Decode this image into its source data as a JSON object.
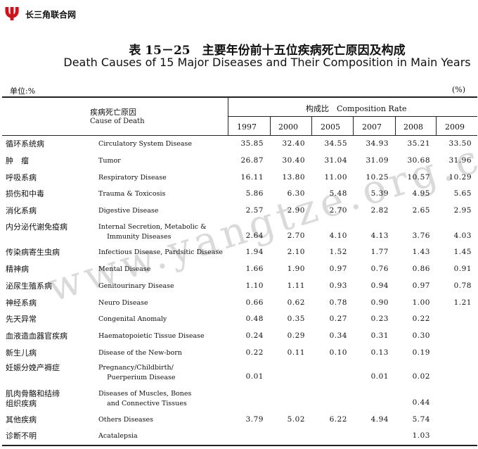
{
  "logo": {
    "text": "长三角联合网",
    "mark": "Ψ",
    "color": "#d0101a"
  },
  "title": {
    "cn": "表 15－25　主要年份前十五位疾病死亡原因及构成",
    "en": "Death Causes of 15 Major Diseases and Their Composition in Main Years"
  },
  "unit": {
    "left": "单位:%",
    "right": "(%)"
  },
  "header": {
    "cause_cn": "疾病死亡原因",
    "cause_en": "Cause of Death",
    "rate": "构成比　Composition Rate",
    "years": [
      "1997",
      "2000",
      "2005",
      "2007",
      "2008",
      "2009"
    ]
  },
  "rows": [
    {
      "cn": "循环系统病",
      "en": "Circulatory System Disease",
      "values": [
        "35.85",
        "32.40",
        "34.55",
        "34.93",
        "35.21",
        "33.50"
      ]
    },
    {
      "cn": "肿　瘤",
      "en": "Tumor",
      "values": [
        "26.87",
        "30.40",
        "31.04",
        "31.09",
        "30.68",
        "31.96"
      ]
    },
    {
      "cn": "呼吸系病",
      "en": "Respiratory Disease",
      "values": [
        "16.11",
        "13.80",
        "11.00",
        "10.25",
        "10.57",
        "10.29"
      ]
    },
    {
      "cn": "损伤和中毒",
      "en": "Trauma & Toxicosis",
      "values": [
        "5.86",
        "6.30",
        "5.48",
        "5.39",
        "4.95",
        "5.65"
      ]
    },
    {
      "cn": "消化系病",
      "en": "Digestive Disease",
      "values": [
        "2.57",
        "2.90",
        "2.70",
        "2.82",
        "2.65",
        "2.95"
      ]
    },
    {
      "cn": "内分泌代谢免疫病",
      "en": "Internal Secretion, Metabolic &\n    Immunity Diseases",
      "values": [
        "2.64",
        "2.70",
        "4.10",
        "4.13",
        "3.76",
        "4.03"
      ]
    },
    {
      "cn": "传染病寄生虫病",
      "en": "Infectious Disease, Pardsitic Disease",
      "values": [
        "1.94",
        "2.10",
        "1.52",
        "1.77",
        "1.43",
        "1.45"
      ]
    },
    {
      "cn": "精神病",
      "en": "Mental Disease",
      "values": [
        "1.66",
        "1.90",
        "0.97",
        "0.76",
        "0.86",
        "0.91"
      ]
    },
    {
      "cn": "泌尿生殖系病",
      "en": "Genitourinary Disease",
      "values": [
        "1.10",
        "1.11",
        "0.93",
        "0.94",
        "0.97",
        "0.78"
      ]
    },
    {
      "cn": "神经系病",
      "en": "Neuro Disease",
      "values": [
        "0.66",
        "0.62",
        "0.78",
        "0.90",
        "1.00",
        "1.21"
      ]
    },
    {
      "cn": "先天异常",
      "en": "Congenital Anomaly",
      "values": [
        "0.48",
        "0.35",
        "0.27",
        "0.23",
        "0.22",
        ""
      ]
    },
    {
      "cn": "血液造血器官疾病",
      "en": "Haematopoietic Tissue Disease",
      "values": [
        "0.24",
        "0.29",
        "0.34",
        "0.31",
        "0.30",
        ""
      ]
    },
    {
      "cn": "新生儿病",
      "en": "Disease of the New-born",
      "values": [
        "0.22",
        "0.11",
        "0.10",
        "0.13",
        "0.19",
        ""
      ]
    },
    {
      "cn": "妊娠分娩产褥症",
      "en": "Pregnancy/Childbirth/\n    Puerperium Disease",
      "values": [
        "0.01",
        "",
        "",
        "0.01",
        "0.02",
        ""
      ]
    },
    {
      "cn": "肌肉骨骼和结缔\n组织疾病",
      "en": "Diseases of Muscles, Bones\n    and Connective Tissues",
      "values": [
        "",
        "",
        "",
        "",
        "0.44",
        ""
      ]
    },
    {
      "cn": "其他疾病",
      "en": "Others Diseases",
      "values": [
        "3.79",
        "5.02",
        "6.22",
        "4.94",
        "5.74",
        ""
      ]
    },
    {
      "cn": "诊断不明",
      "en": "Acatalepsia",
      "values": [
        "",
        "",
        "",
        "",
        "1.03",
        ""
      ]
    }
  ],
  "watermark": "www.yangtze.org.cn"
}
